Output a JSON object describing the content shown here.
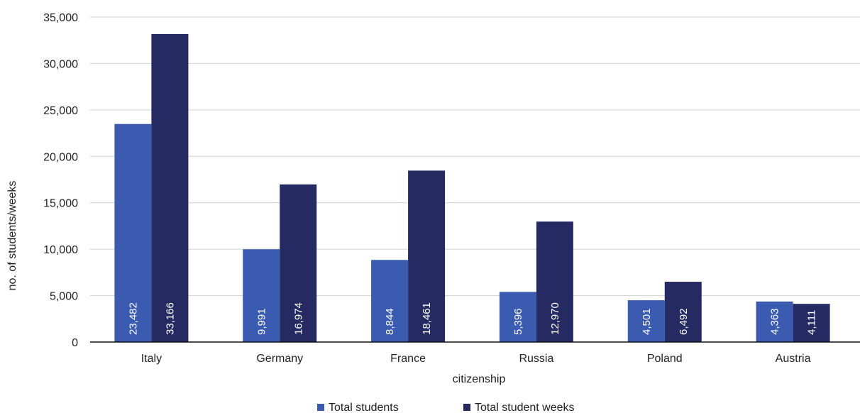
{
  "chart_data": {
    "type": "bar",
    "title": "",
    "xlabel": "citizenship",
    "ylabel": "no. of students/weeks",
    "categories": [
      "Italy",
      "Germany",
      "France",
      "Russia",
      "Poland",
      "Austria"
    ],
    "series": [
      {
        "name": "Total students",
        "color": "#3a5bb0",
        "values": [
          23482,
          9991,
          8844,
          5396,
          4501,
          4363
        ],
        "labels": [
          "23,482",
          "9,991",
          "8,844",
          "5,396",
          "4,501",
          "4,363"
        ]
      },
      {
        "name": "Total student weeks",
        "color": "#262a62",
        "values": [
          33166,
          16974,
          18461,
          12970,
          6492,
          4111
        ],
        "labels": [
          "33,166",
          "16,974",
          "18,461",
          "12,970",
          "6,492",
          "4,111"
        ]
      }
    ],
    "ylim": [
      0,
      35000
    ],
    "yticks": [
      0,
      5000,
      10000,
      15000,
      20000,
      25000,
      30000,
      35000
    ],
    "ytick_labels": [
      "0",
      "5,000",
      "10,000",
      "15,000",
      "20,000",
      "25,000",
      "30,000",
      "35,000"
    ],
    "grid": true,
    "legend_position": "bottom"
  }
}
